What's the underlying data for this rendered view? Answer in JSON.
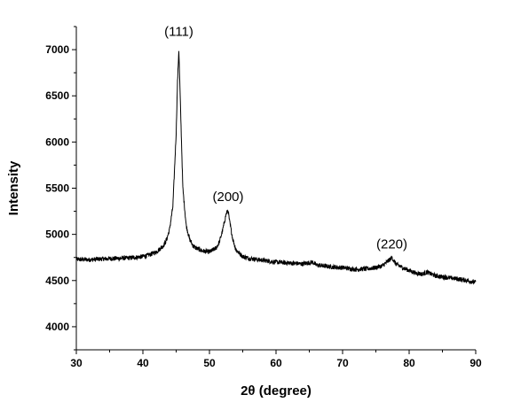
{
  "chart_data": {
    "type": "line",
    "title": "",
    "xlabel": "2θ (degree)",
    "ylabel": "Intensity",
    "xlim": [
      30,
      90
    ],
    "ylim": [
      3750,
      7250
    ],
    "x_ticks": [
      30,
      40,
      50,
      60,
      70,
      80,
      90
    ],
    "y_ticks": [
      4000,
      4500,
      5000,
      5500,
      6000,
      6500,
      7000
    ],
    "grid": false,
    "legend": "none",
    "line_color": "#000000",
    "series": [
      {
        "x": [
          30,
          32,
          34,
          36,
          38,
          40,
          41,
          42,
          43,
          43.5,
          44,
          44.5,
          45,
          45.2,
          45.4,
          45.6,
          45.8,
          46,
          46.5,
          47,
          47.5,
          48,
          49,
          50,
          51,
          51.5,
          52,
          52.5,
          52.8,
          53,
          53.5,
          54,
          55,
          56,
          58,
          60,
          62,
          64,
          65.5,
          66,
          68,
          70,
          72,
          74,
          75,
          76,
          77,
          77.4,
          78,
          79,
          80,
          81,
          82,
          82.7,
          84,
          86,
          88,
          90
        ],
        "y": [
          4730,
          4725,
          4735,
          4740,
          4745,
          4760,
          4780,
          4810,
          4870,
          4930,
          5050,
          5300,
          6100,
          6650,
          7000,
          6500,
          6000,
          5500,
          5100,
          4950,
          4880,
          4850,
          4820,
          4810,
          4850,
          4920,
          5050,
          5220,
          5260,
          5150,
          4950,
          4830,
          4760,
          4740,
          4720,
          4700,
          4690,
          4680,
          4700,
          4670,
          4650,
          4640,
          4620,
          4630,
          4640,
          4660,
          4720,
          4750,
          4680,
          4640,
          4610,
          4580,
          4570,
          4590,
          4550,
          4530,
          4510,
          4480
        ]
      }
    ],
    "annotations": [
      {
        "text": "(111)",
        "x": 45.4,
        "y": 7150
      },
      {
        "text": "(200)",
        "x": 52.8,
        "y": 5360
      },
      {
        "text": "(220)",
        "x": 77.4,
        "y": 4850
      }
    ]
  }
}
